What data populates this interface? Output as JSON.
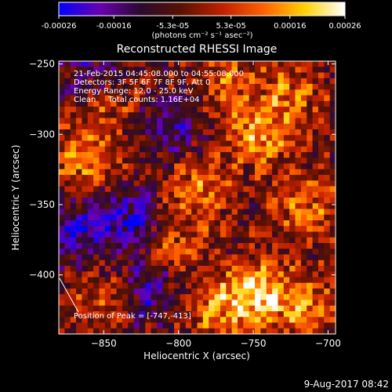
{
  "colorbar": {
    "tick_labels": [
      "-0.00026",
      "-0.00016",
      "-5.3e-05",
      "5.3e-05",
      "0.00016",
      "0.00026"
    ],
    "tick_values": [
      -0.00026,
      -0.00016,
      -5.3e-05,
      5.3e-05,
      0.00016,
      0.00026
    ],
    "range": [
      -0.00026,
      0.00026
    ],
    "unit_label": "(photons cm⁻² s⁻¹ asec⁻²)",
    "colormap": [
      "#0000ff",
      "#6a00b0",
      "#2a0a30",
      "#5a1200",
      "#c02000",
      "#ff6000",
      "#ffd000",
      "#ffffff"
    ]
  },
  "chart_data": {
    "type": "heatmap",
    "title": "Reconstructed RHESSI Image",
    "xlabel": "Heliocentric X (arcsec)",
    "ylabel": "Heliocentric Y (arcsec)",
    "xlim": [
      -880,
      -695
    ],
    "ylim": [
      -442,
      -248
    ],
    "xticks": [
      -850,
      -800,
      -750,
      -700
    ],
    "yticks": [
      -250,
      -300,
      -350,
      -400
    ],
    "xtick_labels": [
      "−850",
      "−800",
      "−750",
      "−700"
    ],
    "ytick_labels": [
      "−250",
      "−300",
      "−350",
      "−400"
    ],
    "peak": [
      -747,
      -413
    ],
    "hotspots": [
      {
        "x": -747,
        "y": -413,
        "v": 1.0
      },
      {
        "x": -745,
        "y": -300,
        "v": 0.85
      },
      {
        "x": -788,
        "y": -340,
        "v": 0.75
      },
      {
        "x": -862,
        "y": -318,
        "v": 0.8
      },
      {
        "x": -805,
        "y": -378,
        "v": 0.6
      },
      {
        "x": -715,
        "y": -350,
        "v": 0.65
      },
      {
        "x": -725,
        "y": -270,
        "v": 0.55
      },
      {
        "x": -770,
        "y": -262,
        "v": 0.5
      },
      {
        "x": -845,
        "y": -278,
        "v": 0.45
      },
      {
        "x": -850,
        "y": -415,
        "v": 0.5
      },
      {
        "x": -712,
        "y": -425,
        "v": 0.7
      },
      {
        "x": -775,
        "y": -425,
        "v": 0.65
      }
    ],
    "coldspots": [
      {
        "x": -830,
        "y": -360,
        "v": -0.8
      },
      {
        "x": -805,
        "y": -295,
        "v": -0.6
      },
      {
        "x": -872,
        "y": -370,
        "v": -0.75
      },
      {
        "x": -855,
        "y": -255,
        "v": -0.5
      },
      {
        "x": -820,
        "y": -410,
        "v": -0.7
      }
    ]
  },
  "annotations": {
    "line1": "21-Feb-2015 04:45:08.000 to 04:55:08.000",
    "line2": "Detectors: 3F 5F 6F 7F 8F 9F, Att 0",
    "line3": "Energy Range: 12.0 - 25.0 keV",
    "line4": "Clean     Total counts: 1.16E+04",
    "peak_label": "Position of Peak = [-747,-413]"
  },
  "footer": {
    "date": "9-Aug-2017 08:42"
  }
}
